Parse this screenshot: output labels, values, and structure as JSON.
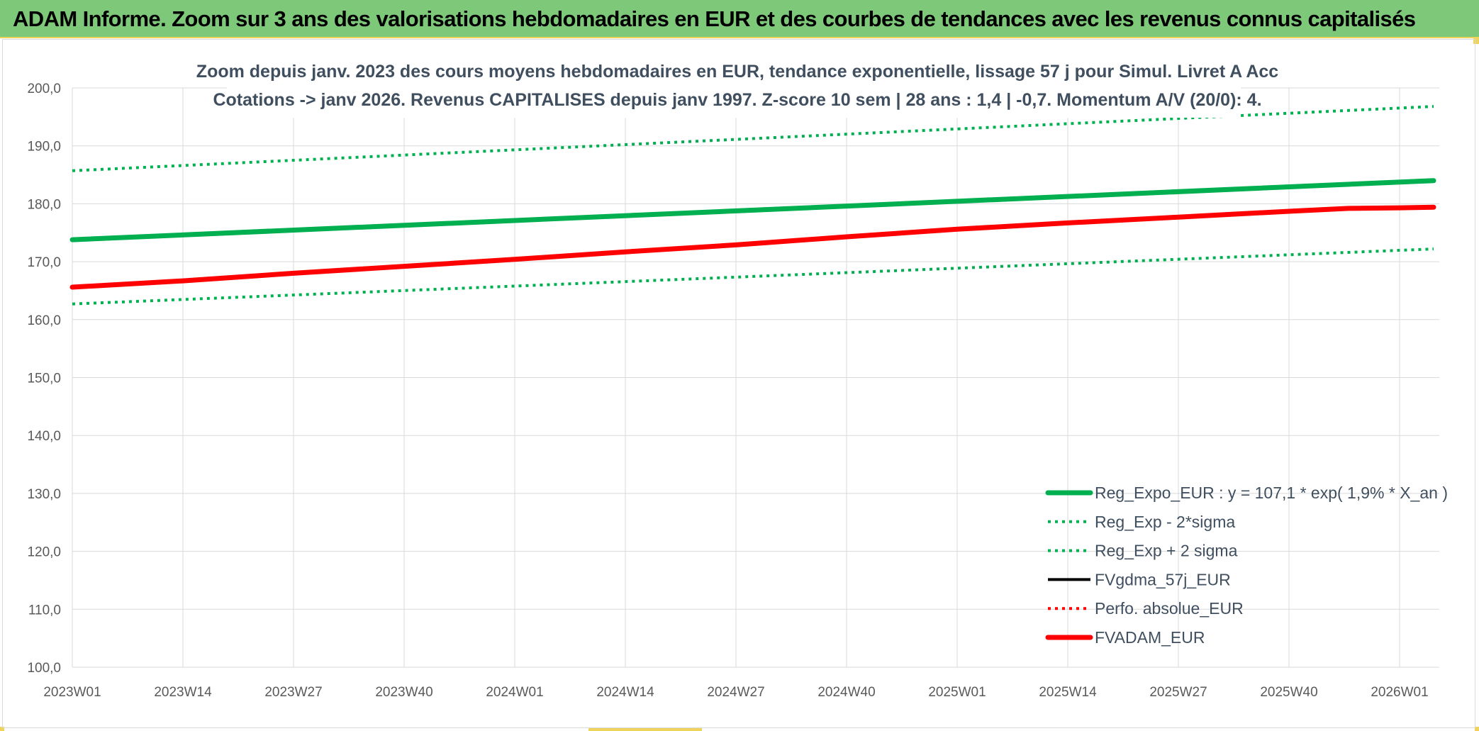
{
  "header": {
    "title": "ADAM Informe. Zoom sur 3 ans des valorisations hebdomadaires en EUR et des courbes de tendances avec les revenus connus capitalisés"
  },
  "chart_data": {
    "type": "line",
    "title_lines": [
      "Zoom depuis janv. 2023 des cours moyens hebdomadaires en EUR, tendance exponentielle, lissage 57 j pour Simul. Livret A Acc",
      "Cotations -> janv 2026. Revenus CAPITALISES depuis janv 1997. Z-score 10 sem | 28 ans : 1,4 | -0,7. Momentum A/V (20/0): 4."
    ],
    "xlabel": "",
    "ylabel": "",
    "ylim": [
      100,
      200
    ],
    "yticks": [
      "100,0",
      "110,0",
      "120,0",
      "130,0",
      "140,0",
      "150,0",
      "160,0",
      "170,0",
      "180,0",
      "190,0",
      "200,0"
    ],
    "x_categories": [
      "2023W01",
      "2023W14",
      "2023W27",
      "2023W40",
      "2024W01",
      "2024W14",
      "2024W27",
      "2024W40",
      "2025W01",
      "2025W14",
      "2025W27",
      "2025W40",
      "2026W01"
    ],
    "x_end_week_index": 160,
    "grid": true,
    "legend_position": "bottom-right",
    "series": [
      {
        "name": "Reg_Expo_EUR : y = 107,1 * exp( 1,9% *  X_an )",
        "style": "solid-thick",
        "color": "#00b050",
        "x": [
          0,
          160
        ],
        "values": [
          173.8,
          184.0
        ]
      },
      {
        "name": "Reg_Exp - 2*sigma",
        "style": "dotted",
        "color": "#00b050",
        "x": [
          0,
          160
        ],
        "values": [
          162.7,
          172.2
        ]
      },
      {
        "name": "Reg_Exp + 2 sigma",
        "style": "dotted",
        "color": "#00b050",
        "x": [
          0,
          160
        ],
        "values": [
          185.7,
          196.8
        ]
      },
      {
        "name": "FVgdma_57j_EUR",
        "style": "solid-thin",
        "color": "#000000",
        "x": [],
        "values": []
      },
      {
        "name": "Perfo. absolue_EUR",
        "style": "dotted",
        "color": "#ff0000",
        "x": [],
        "values": []
      },
      {
        "name": "FVADAM_EUR",
        "style": "solid-thick",
        "color": "#ff0000",
        "x": [
          0,
          13,
          26,
          39,
          52,
          65,
          78,
          91,
          104,
          117,
          130,
          143,
          150,
          156,
          160
        ],
        "values": [
          165.6,
          166.7,
          168.0,
          169.2,
          170.4,
          171.7,
          172.9,
          174.3,
          175.6,
          176.7,
          177.7,
          178.7,
          179.2,
          179.3,
          179.4
        ]
      }
    ]
  }
}
